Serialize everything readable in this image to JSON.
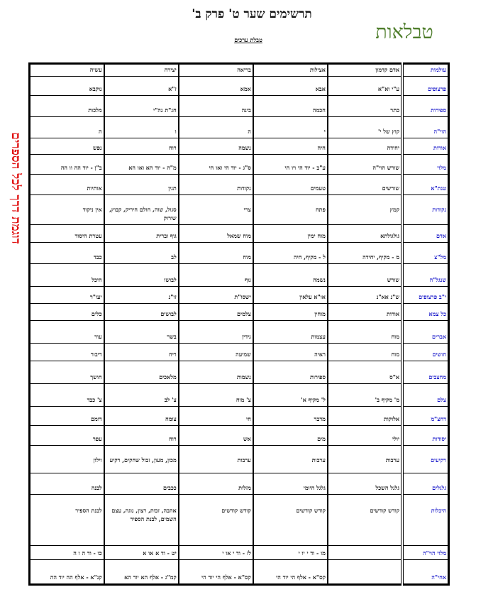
{
  "title": "תרשימים שער ט' פרק ב'",
  "subtitle": "טבלת ערכים",
  "logo": "טבלאות",
  "side_note": "דוגמת דרך לכל הספרים",
  "colors": {
    "logo": "#4e7d2b",
    "side_note": "#e01010",
    "row_labels": "#1010c8"
  },
  "table": {
    "header": [
      "עולמות",
      "אדם קדמון",
      "אצילות",
      "בריאה",
      "יצירה",
      "עשיה"
    ],
    "rows": [
      {
        "label": "פרצופים",
        "cells": [
          "ע\"י וא\"א",
          "אבא",
          "אמא",
          "ז\"א",
          "נוקבא"
        ]
      },
      {
        "label": "ספירות",
        "cells": [
          "כתר",
          "חכמה",
          "בינה",
          "חג\"ת נה\"י",
          "מלכות"
        ]
      },
      {
        "label": "הוי\"ה",
        "cells": [
          "קוץ של י'",
          "י",
          "ה",
          "ו",
          "ה"
        ]
      },
      {
        "label": "אורות",
        "cells": [
          "יחידה",
          "חיה",
          "נשמה",
          "רוח",
          "נפש"
        ]
      },
      {
        "label": "מלוי",
        "cells": [
          "שורש הוי\"ה",
          "ע\"ב - יוד הי ויו הי",
          "ס\"ג - יוד הי ואו הי",
          "מ\"ה - יוד הא ואו הא",
          "ב\"ן - יוד הה וו הה"
        ]
      },
      {
        "label": "טנת\"א",
        "cells": [
          "שורשים",
          "טעמים",
          "נקודות",
          "תגין",
          "אותיות"
        ]
      },
      {
        "label": "נקודות",
        "cells": [
          "קמץ",
          "פתח",
          "צרי",
          "סגול, שוה, חולם חיריק, קבוץ, שורוק",
          "אין ניקוד"
        ]
      },
      {
        "label": "אדם",
        "cells": [
          "גולגולתא",
          "מוח ימין",
          "מוח שמאל",
          "גוף וברית",
          "עטרת היסוד"
        ]
      },
      {
        "label": "מל\"צ",
        "cells": [
          "מ - מקיף, יחידה",
          "ל - מקיף, חיה",
          "מוח",
          "לב",
          "כבד"
        ]
      },
      {
        "label": "שנגל\"ה",
        "cells": [
          "שורש",
          "נשמה",
          "גוף",
          "לבושו",
          "היכל"
        ]
      },
      {
        "label": "י\"ב פרצופים",
        "cells": [
          "ש\"נ אא\"נ",
          "או\"א עלאין",
          "ישסו\"ת",
          "זו\"נ",
          "יעו\"ר"
        ]
      },
      {
        "label": "כל צמא",
        "cells": [
          "אורות",
          "מוחין",
          "צלמים",
          "לבושים",
          "כלים"
        ]
      },
      {
        "label": "אברים",
        "cells": [
          "מוח",
          "עצמות",
          "גידין",
          "בשר",
          "עור"
        ]
      },
      {
        "label": "חושים",
        "cells": [
          "מוח",
          "ראיה",
          "שמיעה",
          "ריח",
          "דיבור"
        ]
      },
      {
        "label": "מחצבים",
        "cells": [
          "א\"ס",
          "ספירות",
          "נשמות",
          "מלאכים",
          "חושך"
        ]
      },
      {
        "label": "צלם",
        "cells": [
          "מ' מקיף ב'",
          "ל' מקיף א'",
          "צ' מוח",
          "צ' לב",
          "צ' כבד"
        ]
      },
      {
        "label": "דחצ\"מ",
        "cells": [
          "אלוקות",
          "מדבר",
          "חי",
          "צומח",
          "דומם"
        ]
      },
      {
        "label": "יסודות",
        "cells": [
          "יולי",
          "מים",
          "אש",
          "רוח",
          "עפר"
        ]
      },
      {
        "label": "רקיעים",
        "cells": [
          "ערבות",
          "ערבות",
          "ערבות",
          "מכון, מעון, זבול שחקים, רקיע",
          "וילון"
        ]
      },
      {
        "label": "גלגלים",
        "cells": [
          "גלגל השכל",
          "גלגל היומי",
          "מזלות",
          "ככבים",
          "לבנה"
        ]
      },
      {
        "label": "היכלות",
        "cells": [
          "קודש קודשים",
          "קודש קודשים",
          "קודש קודשים",
          "אהבה, זכות, רצון, נוגה, עצם השמים, לבנת הספיר",
          "לבנת הספיר"
        ]
      },
      {
        "label": "מלוי הוי\"ה",
        "cells": [
          "",
          "מו - וד י יו י",
          "לז - וד י או י",
          "יט - וד א או א",
          "כו - וד ה ו ה"
        ]
      },
      {
        "label": "אחי\"ה",
        "cells": [
          "",
          "קס\"א - אלף הי יוד הי",
          "קס\"א - אלף הי יוד הי",
          "קמ\"ג - אלף הא יוד הא",
          "קנ\"א - אלף הה יוד הה"
        ]
      }
    ]
  }
}
